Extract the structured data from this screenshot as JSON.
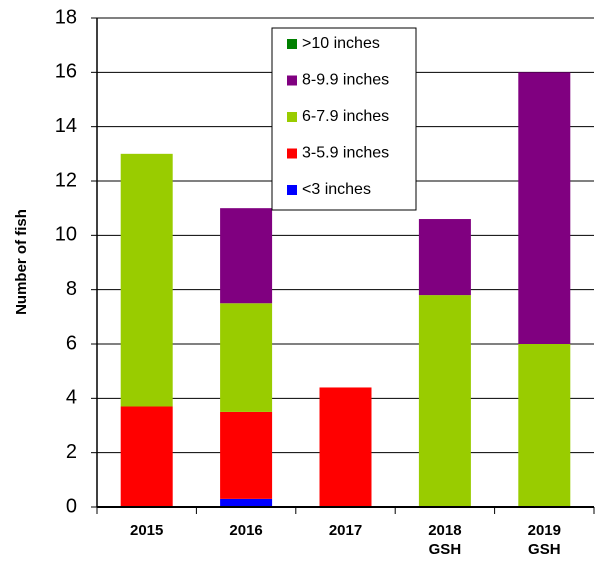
{
  "chart_data": {
    "type": "stacked_bar",
    "y_label": "Number of fish",
    "categories": [
      [
        "2015"
      ],
      [
        "2016"
      ],
      [
        "2017"
      ],
      [
        "2018",
        "GSH"
      ],
      [
        "2019",
        "GSH"
      ]
    ],
    "series": [
      {
        "name": "<3 inches",
        "color": "#0000ff",
        "values": [
          0,
          0.3,
          0,
          0,
          0
        ]
      },
      {
        "name": "3-5.9 inches",
        "color": "#ff0000",
        "values": [
          3.7,
          3.2,
          4.4,
          0,
          0
        ]
      },
      {
        "name": "6-7.9 inches",
        "color": "#99cc00",
        "values": [
          9.3,
          4.0,
          0,
          7.8,
          6
        ]
      },
      {
        "name": "8-9.9 inches",
        "color": "#800080",
        "values": [
          0,
          3.5,
          0,
          2.8,
          10
        ]
      },
      {
        "name": ">10 inches",
        "color": "#008000",
        "values": [
          0,
          0,
          0,
          0,
          0
        ]
      }
    ],
    "ylim": [
      0,
      18
    ],
    "yticks": [
      0,
      2,
      4,
      6,
      8,
      10,
      12,
      14,
      16,
      18
    ],
    "grid": true,
    "legend": "top"
  }
}
